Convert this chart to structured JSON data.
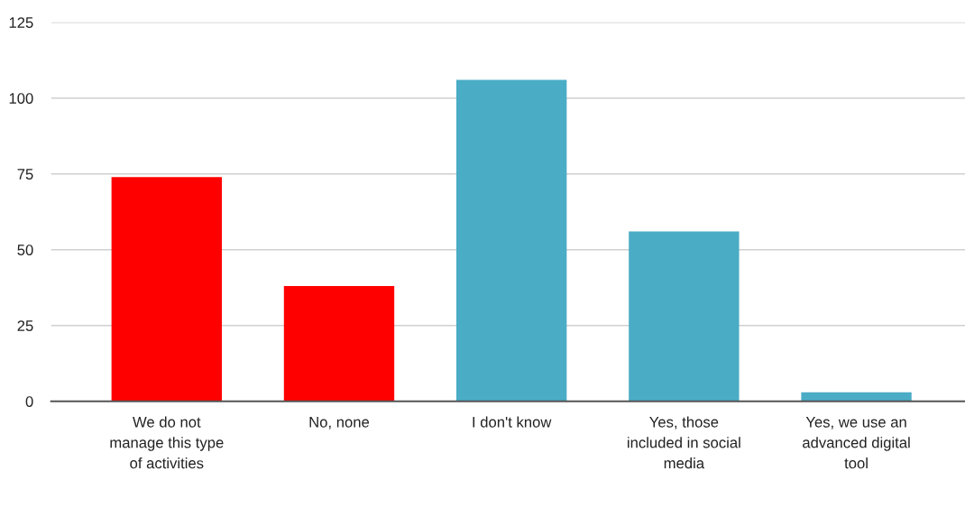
{
  "chart_data": {
    "type": "bar",
    "categories": [
      "We do not manage this type of activities",
      "No, none",
      "I don't know",
      "Yes, those included in social media",
      "Yes, we use an advanced digital tool"
    ],
    "values": [
      74,
      38,
      106,
      56,
      3
    ],
    "colors": [
      "#ff0000",
      "#ff0000",
      "#4bacc6",
      "#4bacc6",
      "#4bacc6"
    ],
    "ylim": [
      0,
      125
    ],
    "yticks": [
      0,
      25,
      50,
      75,
      100,
      125
    ],
    "grid": "y"
  }
}
